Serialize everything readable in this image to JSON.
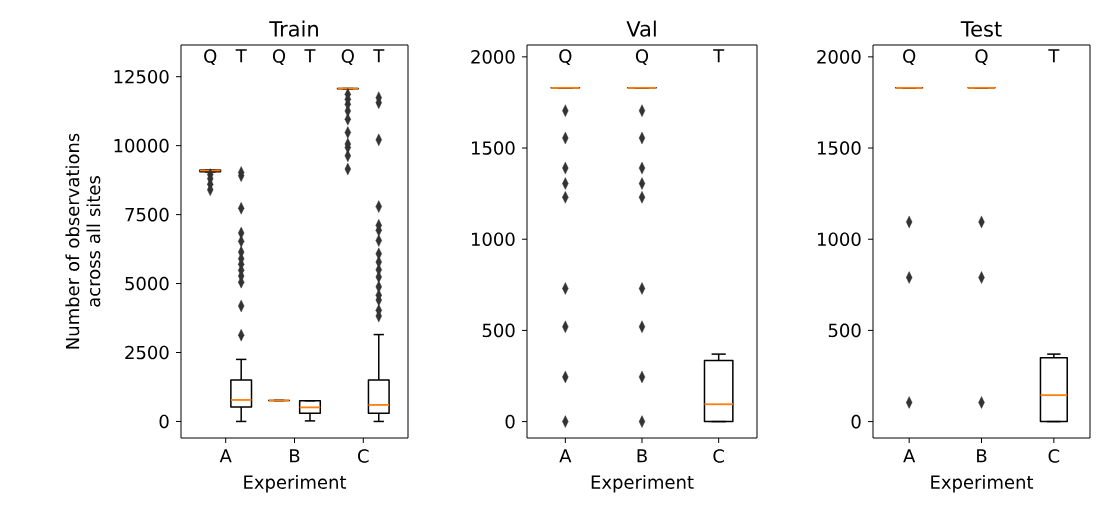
{
  "chart_data": [
    {
      "type": "box",
      "title": "Train",
      "xlabel": "Experiment",
      "ylabel": "Number of observations across all sites",
      "categories": [
        "A",
        "B",
        "C"
      ],
      "ylim": [
        -600,
        13650
      ],
      "yticks": [
        0,
        2500,
        5000,
        7500,
        10000,
        12500
      ],
      "marker": "diamond",
      "series": [
        {
          "name": "Q",
          "color": "#000000",
          "boxes": [
            {
              "low": 9050,
              "q1": 9050,
              "median": 9100,
              "q3": 9120,
              "high": 9120,
              "outliers": [
                8950,
                8800,
                8600,
                8400
              ]
            },
            {
              "low": 760,
              "q1": 760,
              "median": 760,
              "q3": 760,
              "high": 760
            },
            {
              "low": 12060,
              "q1": 12060,
              "median": 12070,
              "q3": 12070,
              "high": 12070,
              "outliers": [
                9150,
                9630,
                9930,
                10060,
                10480,
                10960,
                11260,
                11500,
                11680,
                11860
              ]
            }
          ]
        },
        {
          "name": "T",
          "color": "#000000",
          "boxes": [
            {
              "low": 0,
              "q1": 520,
              "median": 780,
              "q3": 1500,
              "high": 2250,
              "outliers": [
                3130,
                4190,
                5050,
                5270,
                5480,
                5700,
                5900,
                6140,
                6530,
                6830,
                7730,
                8910,
                9030
              ]
            },
            {
              "low": 20,
              "q1": 300,
              "median": 510,
              "q3": 750,
              "high": 750
            },
            {
              "low": 0,
              "q1": 300,
              "median": 600,
              "q3": 1500,
              "high": 3150,
              "outliers": [
                3820,
                4030,
                4400,
                4580,
                4880,
                5240,
                5500,
                5780,
                6080,
                6560,
                6930,
                7110,
                7790,
                10210,
                11560,
                11740
              ]
            }
          ]
        }
      ]
    },
    {
      "type": "box",
      "title": "Val",
      "xlabel": "Experiment",
      "categories": [
        "A",
        "B",
        "C"
      ],
      "ylim": [
        -90,
        2065
      ],
      "yticks": [
        0,
        500,
        1000,
        1500,
        2000
      ],
      "marker": "diamond",
      "series": [
        {
          "name": "Q",
          "color": "#000000",
          "boxes": [
            {
              "low": 1830,
              "q1": 1830,
              "median": 1830,
              "q3": 1830,
              "high": 1830,
              "outliers": [
                1705,
                1555,
                1390,
                1305,
                1230,
                730,
                520,
                245,
                0
              ]
            },
            {
              "low": 1830,
              "q1": 1830,
              "median": 1830,
              "q3": 1830,
              "high": 1830,
              "outliers": [
                1705,
                1555,
                1390,
                1305,
                1230,
                730,
                520,
                245,
                0
              ]
            },
            null
          ]
        },
        {
          "name": "T",
          "color": "#000000",
          "boxes": [
            null,
            null,
            {
              "low": 0,
              "q1": 0,
              "median": 95,
              "q3": 335,
              "high": 370
            }
          ]
        }
      ]
    },
    {
      "type": "box",
      "title": "Test",
      "xlabel": "Experiment",
      "categories": [
        "A",
        "B",
        "C"
      ],
      "ylim": [
        -90,
        2065
      ],
      "yticks": [
        0,
        500,
        1000,
        1500,
        2000
      ],
      "marker": "diamond",
      "series": [
        {
          "name": "Q",
          "color": "#000000",
          "boxes": [
            {
              "low": 1830,
              "q1": 1830,
              "median": 1830,
              "q3": 1830,
              "high": 1830,
              "outliers": [
                1095,
                790,
                105
              ]
            },
            {
              "low": 1830,
              "q1": 1830,
              "median": 1830,
              "q3": 1830,
              "high": 1830,
              "outliers": [
                1095,
                790,
                105
              ]
            },
            null
          ]
        },
        {
          "name": "T",
          "color": "#000000",
          "boxes": [
            null,
            null,
            {
              "low": 0,
              "q1": 0,
              "median": 145,
              "q3": 350,
              "high": 370
            }
          ]
        }
      ]
    }
  ]
}
